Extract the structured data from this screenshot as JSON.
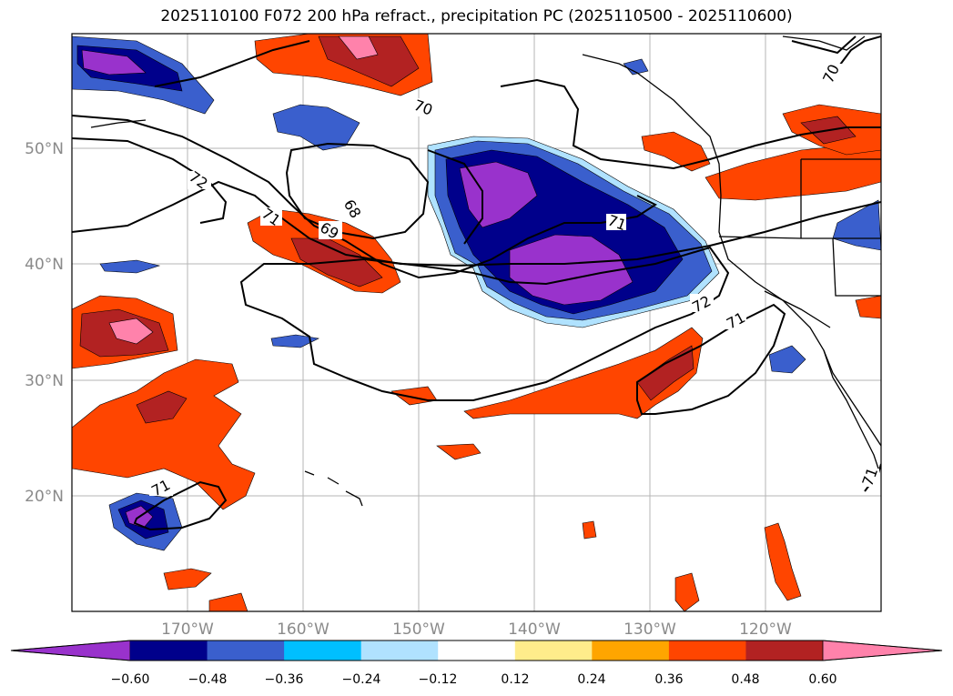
{
  "title": "2025110100 F072 200 hPa refract., precipitation PC (2025110500 - 2025110600)",
  "map": {
    "lon_range": [
      -180,
      -110
    ],
    "lat_range": [
      10,
      60
    ],
    "lat_ticks": [
      "50°N",
      "40°N",
      "30°N",
      "20°N"
    ],
    "lon_ticks": [
      "170°W",
      "160°W",
      "150°W",
      "140°W",
      "130°W",
      "120°W"
    ],
    "gridlines": true,
    "contour_labels": [
      "72",
      "71",
      "69",
      "68",
      "70",
      "71",
      "72",
      "71",
      "71",
      "70",
      "71"
    ]
  },
  "colorbar": {
    "extend": "both",
    "ticks": [
      "−0.60",
      "−0.48",
      "−0.36",
      "−0.24",
      "−0.12",
      "0.12",
      "0.24",
      "0.36",
      "0.48",
      "0.60"
    ],
    "colors": [
      "#9932CC",
      "#00008B",
      "#3A5FCD",
      "#00BFFF",
      "#B0E2FF",
      "#FFFFFF",
      "#FFEC8B",
      "#FFA500",
      "#FF4500",
      "#B22222",
      "#FF82AB"
    ]
  }
}
